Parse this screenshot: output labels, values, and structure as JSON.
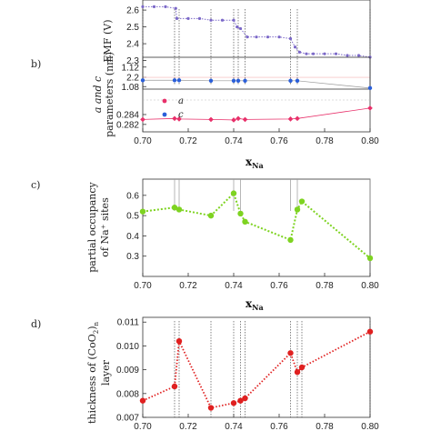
{
  "chart_data": [
    {
      "panel": "a",
      "type": "line",
      "ylabel": "EMF (V)",
      "ylim": [
        2.13,
        2.66
      ],
      "yticks": [
        "2.6",
        "2.5",
        "2.4",
        "2.3",
        "2.2"
      ],
      "xlim": [
        0.7,
        0.8
      ],
      "series": [
        {
          "color": "#7b68c8",
          "x": [
            0.7,
            0.705,
            0.71,
            0.7145,
            0.715,
            0.72,
            0.725,
            0.73,
            0.735,
            0.74,
            0.7415,
            0.743,
            0.746,
            0.75,
            0.755,
            0.76,
            0.765,
            0.767,
            0.769,
            0.772,
            0.775,
            0.78,
            0.785,
            0.79,
            0.795,
            0.8
          ],
          "y": [
            2.62,
            2.62,
            2.62,
            2.61,
            2.55,
            2.55,
            2.55,
            2.54,
            2.54,
            2.54,
            2.5,
            2.49,
            2.44,
            2.44,
            2.44,
            2.44,
            2.43,
            2.38,
            2.35,
            2.34,
            2.34,
            2.34,
            2.34,
            2.33,
            2.33,
            2.32
          ]
        }
      ]
    },
    {
      "panel": "b",
      "type": "scatter",
      "panel_label": "b)",
      "ylabel_line1": "a and c",
      "ylabel_line2": "parameters (nm)",
      "upper_yticks": [
        "1.12",
        "1.08"
      ],
      "lower_yticks": [
        "0.284",
        "0.282"
      ],
      "upper_ylim": [
        1.06,
        1.14
      ],
      "lower_ylim": [
        0.2805,
        0.2862
      ],
      "xlim": [
        0.7,
        0.8
      ],
      "xticks": [
        "0.70",
        "0.72",
        "0.74",
        "0.76",
        "0.78",
        "0.80"
      ],
      "xlabel_main": "x",
      "xlabel_sub": "Na",
      "legend": [
        "a",
        "c"
      ],
      "series": [
        {
          "name": "a",
          "color": "#e8306a",
          "x": [
            0.7,
            0.714,
            0.716,
            0.73,
            0.74,
            0.742,
            0.745,
            0.765,
            0.768,
            0.8
          ],
          "y": [
            0.283,
            0.2832,
            0.2831,
            0.283,
            0.2829,
            0.2832,
            0.283,
            0.2831,
            0.2832,
            0.2853
          ]
        },
        {
          "name": "c",
          "color": "#2b5fd9",
          "x": [
            0.7,
            0.714,
            0.716,
            0.73,
            0.74,
            0.742,
            0.745,
            0.765,
            0.768,
            0.8
          ],
          "y": [
            1.093,
            1.093,
            1.093,
            1.092,
            1.092,
            1.092,
            1.092,
            1.092,
            1.092,
            1.077
          ]
        }
      ]
    },
    {
      "panel": "c",
      "type": "line",
      "panel_label": "c)",
      "ylabel_line1": "partial occupancy",
      "ylabel_line2": "of Na⁺ sites",
      "ylim": [
        0.2,
        0.68
      ],
      "yticks": [
        "0.6",
        "0.5",
        "0.4",
        "0.3"
      ],
      "xlim": [
        0.7,
        0.8
      ],
      "xticks": [
        "0.70",
        "0.72",
        "0.74",
        "0.76",
        "0.78",
        "0.80"
      ],
      "xlabel_main": "x",
      "xlabel_sub": "Na",
      "series": [
        {
          "color": "#7ed321",
          "x": [
            0.7,
            0.714,
            0.716,
            0.73,
            0.74,
            0.743,
            0.745,
            0.765,
            0.768,
            0.77,
            0.8
          ],
          "y": [
            0.52,
            0.54,
            0.53,
            0.5,
            0.61,
            0.51,
            0.47,
            0.38,
            0.53,
            0.57,
            0.29
          ]
        }
      ]
    },
    {
      "panel": "d",
      "type": "line",
      "panel_label": "d)",
      "ylabel_line1": "thickness of (CoO",
      "ylabel_sub": "2",
      "ylabel_close": ")",
      "ylabel_n": "n",
      "ylabel_line2": "layer",
      "ylim": [
        0.007,
        0.0112
      ],
      "yticks": [
        "0.011",
        "0.010",
        "0.009",
        "0.008",
        "0.007"
      ],
      "xlim": [
        0.7,
        0.8
      ],
      "xticks": [
        "0.70",
        "0.72",
        "0.74",
        "0.76",
        "0.78",
        "0.80"
      ],
      "series": [
        {
          "color": "#e02020",
          "x": [
            0.7,
            0.714,
            0.716,
            0.73,
            0.74,
            0.743,
            0.745,
            0.765,
            0.768,
            0.77,
            0.8
          ],
          "y": [
            0.0077,
            0.0083,
            0.0102,
            0.0074,
            0.0076,
            0.0077,
            0.0078,
            0.0097,
            0.0089,
            0.0091,
            0.0106
          ]
        }
      ]
    }
  ]
}
